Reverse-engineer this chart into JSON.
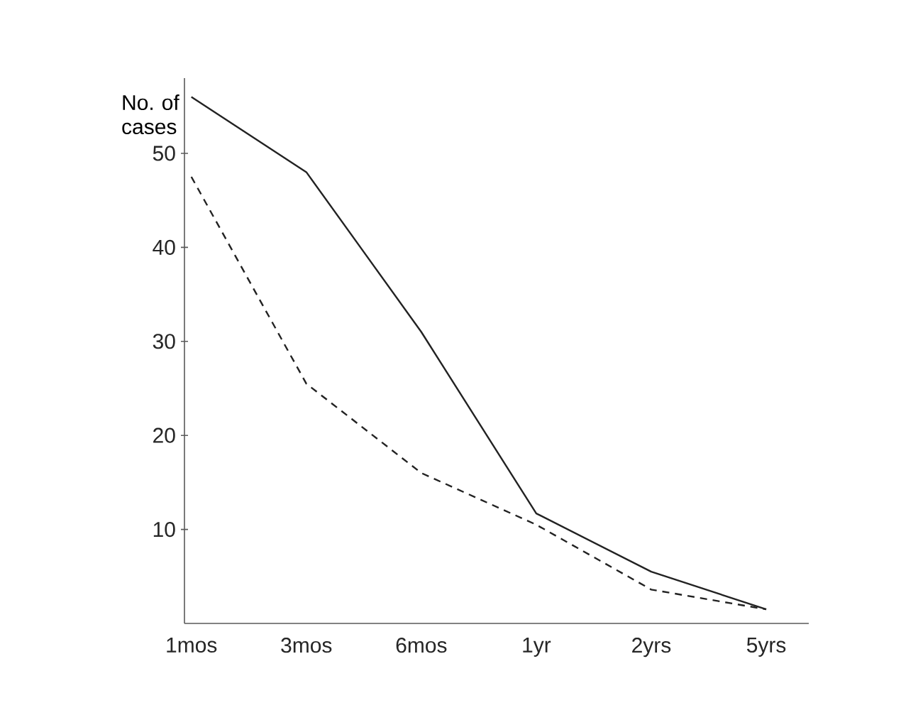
{
  "chart_data": {
    "type": "line",
    "ylabel": "No. of cases",
    "categories": [
      "1mos",
      "3mos",
      "6mos",
      "1yr",
      "2yrs",
      "5yrs"
    ],
    "series": [
      {
        "color": "#222222",
        "line_style": "solid",
        "values": [
          56,
          48,
          31,
          11.7,
          5.5,
          1.5
        ]
      },
      {
        "color": "#222222",
        "line_style": "dashed",
        "values": [
          47.5,
          25.5,
          16,
          10.5,
          3.6,
          1.5
        ]
      }
    ],
    "ylim": [
      0,
      58
    ],
    "yticks": [
      10,
      20,
      30,
      40,
      50
    ],
    "grid": false,
    "marker": "none"
  }
}
